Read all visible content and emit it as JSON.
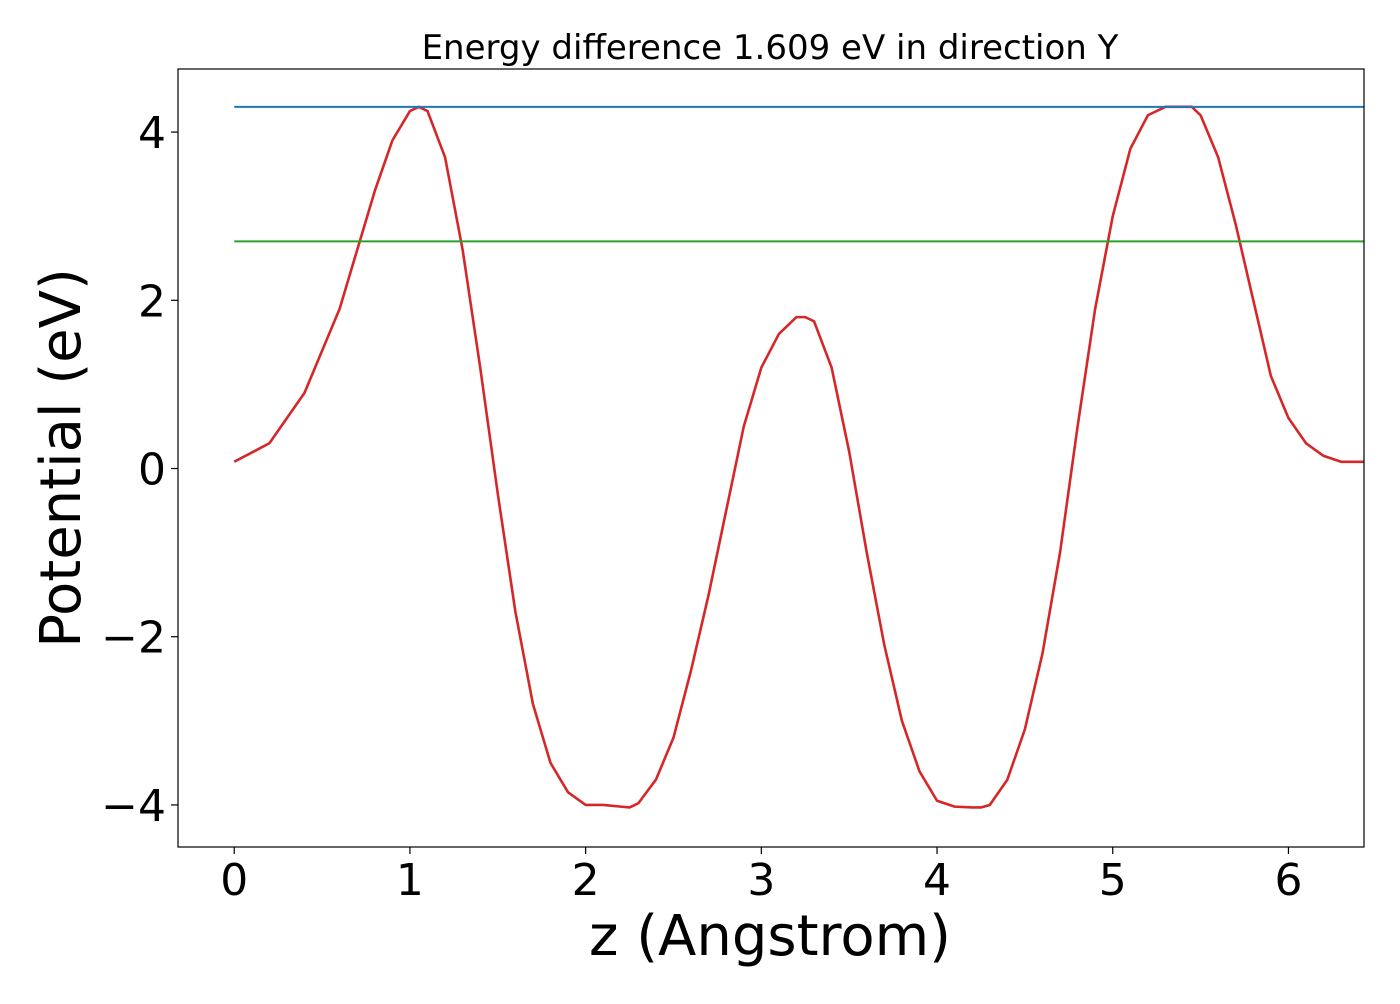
{
  "chart_data": {
    "type": "line",
    "title": "Energy difference 1.609 eV in direction Y",
    "xlabel": "z (Angstrom)",
    "ylabel": "Potential (eV)",
    "xlim": [
      -0.32,
      6.43
    ],
    "ylim": [
      -4.5,
      4.75
    ],
    "xticks": [
      0,
      1,
      2,
      3,
      4,
      5,
      6
    ],
    "yticks": [
      -4,
      -2,
      0,
      2,
      4
    ],
    "xtick_labels": [
      "0",
      "1",
      "2",
      "3",
      "4",
      "5",
      "6"
    ],
    "ytick_labels": [
      "−4",
      "−2",
      "0",
      "2",
      "4"
    ],
    "grid": false,
    "legend": "none",
    "series": [
      {
        "color": "#d62728",
        "x": [
          0.0,
          0.2,
          0.4,
          0.6,
          0.8,
          0.9,
          1.0,
          1.05,
          1.1,
          1.2,
          1.3,
          1.4,
          1.5,
          1.6,
          1.7,
          1.8,
          1.9,
          2.0,
          2.1,
          2.2,
          2.25,
          2.3,
          2.4,
          2.5,
          2.6,
          2.7,
          2.8,
          2.9,
          3.0,
          3.1,
          3.2,
          3.25,
          3.3,
          3.4,
          3.5,
          3.6,
          3.7,
          3.8,
          3.9,
          4.0,
          4.1,
          4.2,
          4.25,
          4.3,
          4.4,
          4.5,
          4.6,
          4.7,
          4.8,
          4.9,
          5.0,
          5.1,
          5.2,
          5.3,
          5.4,
          5.45,
          5.5,
          5.6,
          5.7,
          5.8,
          5.9,
          6.0,
          6.1,
          6.2,
          6.3,
          6.43
        ],
        "y": [
          0.08,
          0.3,
          0.9,
          1.9,
          3.3,
          3.9,
          4.25,
          4.3,
          4.25,
          3.7,
          2.6,
          1.2,
          -0.3,
          -1.7,
          -2.8,
          -3.5,
          -3.85,
          -4.0,
          -4.0,
          -4.02,
          -4.03,
          -3.98,
          -3.7,
          -3.2,
          -2.4,
          -1.5,
          -0.5,
          0.5,
          1.2,
          1.6,
          1.8,
          1.8,
          1.75,
          1.2,
          0.2,
          -1.0,
          -2.1,
          -3.0,
          -3.6,
          -3.95,
          -4.02,
          -4.03,
          -4.03,
          -4.0,
          -3.7,
          -3.1,
          -2.2,
          -1.0,
          0.5,
          1.9,
          3.0,
          3.8,
          4.2,
          4.3,
          4.3,
          4.3,
          4.2,
          3.7,
          2.9,
          2.0,
          1.1,
          0.6,
          0.3,
          0.15,
          0.08,
          0.08
        ]
      },
      {
        "color": "#1f77b4",
        "x": [
          0.0,
          6.43
        ],
        "y": [
          4.3,
          4.3
        ]
      },
      {
        "color": "#2ca02c",
        "x": [
          0.0,
          6.43
        ],
        "y": [
          2.7,
          2.7
        ]
      }
    ]
  }
}
